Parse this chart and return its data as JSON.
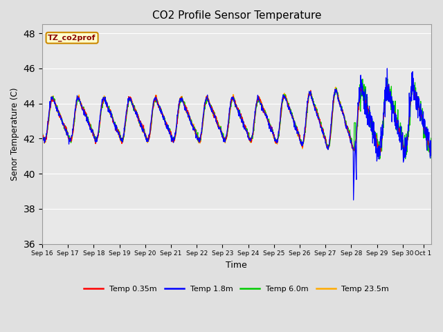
{
  "title": "CO2 Profile Sensor Temperature",
  "ylabel": "Senor Temperature (C)",
  "xlabel": "Time",
  "ylim": [
    36,
    48.5
  ],
  "yticks": [
    36,
    38,
    40,
    42,
    44,
    46,
    48
  ],
  "fig_bg": "#e0e0e0",
  "plot_bg": "#e8e8e8",
  "annotation_text": "TZ_co2prof",
  "annotation_bg": "#ffffcc",
  "annotation_border": "#cc8800",
  "series": [
    {
      "label": "Temp 0.35m",
      "color": "#ff0000"
    },
    {
      "label": "Temp 1.8m",
      "color": "#0000ff"
    },
    {
      "label": "Temp 6.0m",
      "color": "#00cc00"
    },
    {
      "label": "Temp 23.5m",
      "color": "#ffaa00"
    }
  ],
  "x_ticks": [
    0,
    1,
    2,
    3,
    4,
    5,
    6,
    7,
    8,
    9,
    10,
    11,
    12,
    13,
    14,
    14.8
  ],
  "x_tick_labels": [
    "Sep 16",
    "Sep 17",
    "Sep 18",
    "Sep 19",
    "Sep 20",
    "Sep 21",
    "Sep 22",
    "Sep 23",
    "Sep 24",
    "Sep 25",
    "Sep 26",
    "Sep 27",
    "Sep 28",
    "Sep 29",
    "Sep 30",
    "Oct 1"
  ],
  "xlim": [
    0,
    15.1
  ],
  "num_points": 1500,
  "spike_x": 12.15,
  "spike_min": 37.4,
  "base_temp": 43.1,
  "amp": 2.15,
  "period": 1.0
}
